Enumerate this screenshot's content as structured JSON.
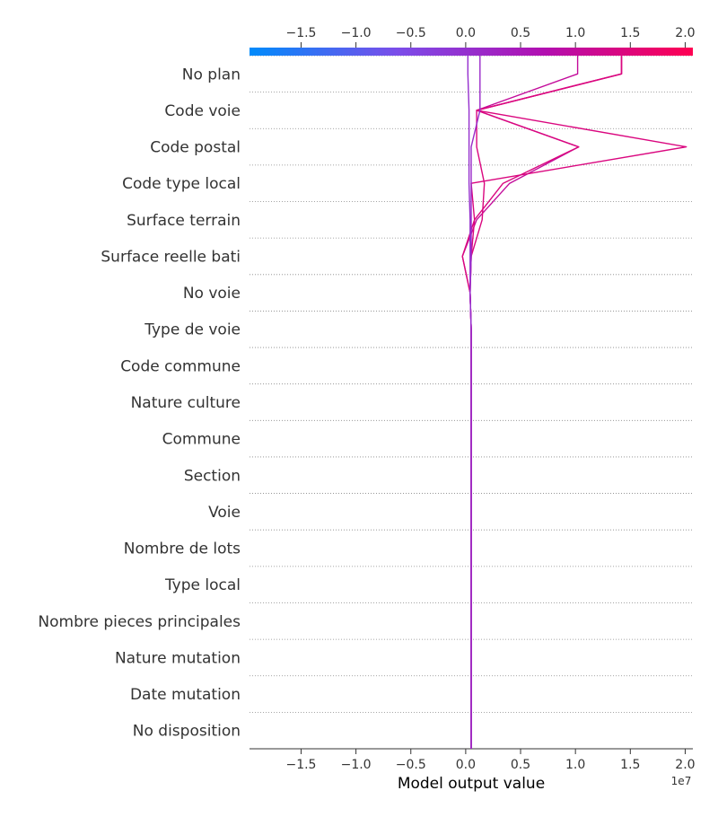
{
  "chart_data": {
    "type": "line",
    "xlabel": "Model output value",
    "x_exponent_label": "1e7",
    "x_ticks": [
      -1.5,
      -1.0,
      -0.5,
      0.0,
      0.5,
      1.0,
      1.5,
      2.0
    ],
    "x_tick_labels": [
      "−1.5",
      "−1.0",
      "−0.5",
      "0.0",
      "0.5",
      "1.0",
      "1.5",
      "2.0"
    ],
    "xlim": [
      -1.97,
      2.07
    ],
    "base_value": 0.05,
    "colormap": [
      "#008bfb",
      "#7b4de9",
      "#b20fb0",
      "#ff0052"
    ],
    "features": [
      "No disposition",
      "Date mutation",
      "Nature mutation",
      "Nombre pieces principales",
      "Type local",
      "Nombre de lots",
      "Voie",
      "Section",
      "Commune",
      "Nature culture",
      "Code commune",
      "Type de voie",
      "No voie",
      "Surface reelle bati",
      "Surface terrain",
      "Code type local",
      "Code postal",
      "Code voie",
      "No plan"
    ],
    "series": [
      {
        "values": [
          0.05,
          0.05,
          0.05,
          0.05,
          0.05,
          0.05,
          0.05,
          0.05,
          0.05,
          0.05,
          0.05,
          0.05,
          0.04,
          -0.03,
          0.1,
          0.4,
          1.03,
          0.1,
          1.02
        ]
      },
      {
        "values": [
          0.05,
          0.05,
          0.05,
          0.05,
          0.05,
          0.05,
          0.05,
          0.05,
          0.05,
          0.05,
          0.05,
          0.05,
          0.04,
          -0.03,
          0.08,
          0.34,
          1.03,
          0.1,
          1.42
        ]
      },
      {
        "values": [
          0.05,
          0.05,
          0.05,
          0.05,
          0.05,
          0.05,
          0.05,
          0.05,
          0.05,
          0.05,
          0.05,
          0.05,
          0.04,
          0.05,
          0.08,
          0.05,
          2.01,
          0.1,
          1.42
        ]
      },
      {
        "values": [
          0.05,
          0.05,
          0.05,
          0.05,
          0.05,
          0.05,
          0.05,
          0.05,
          0.05,
          0.05,
          0.05,
          0.05,
          0.04,
          0.05,
          0.15,
          0.17,
          0.1,
          0.1,
          1.42
        ]
      },
      {
        "values": [
          0.05,
          0.05,
          0.05,
          0.05,
          0.05,
          0.05,
          0.05,
          0.05,
          0.05,
          0.05,
          0.05,
          0.05,
          0.04,
          0.05,
          0.05,
          0.05,
          0.05,
          0.13,
          0.13
        ]
      },
      {
        "values": [
          0.05,
          0.05,
          0.05,
          0.05,
          0.05,
          0.05,
          0.05,
          0.05,
          0.05,
          0.05,
          0.05,
          0.05,
          0.04,
          0.04,
          0.04,
          0.03,
          0.03,
          0.03,
          0.02
        ]
      }
    ]
  }
}
